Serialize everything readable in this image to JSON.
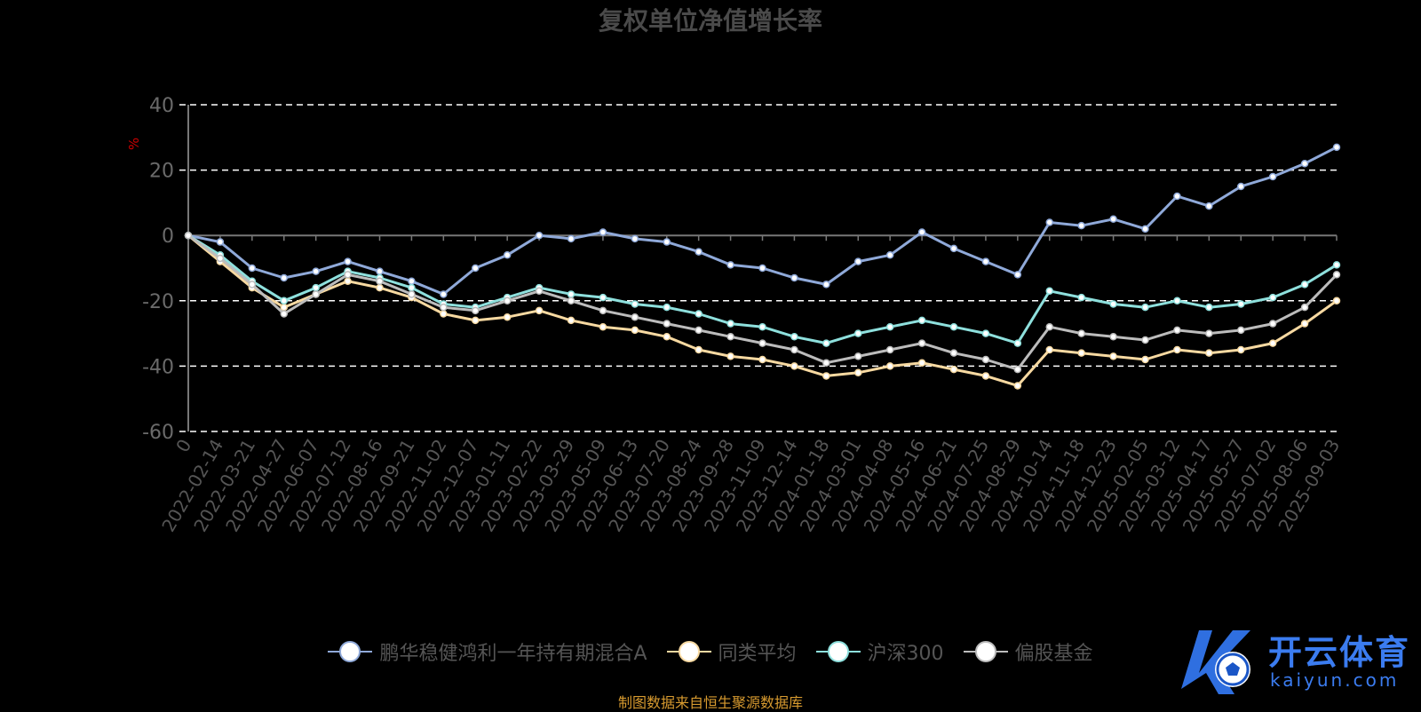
{
  "title": "复权单位净值增长率",
  "source_note": "制图数据来自恒生聚源数据库",
  "watermark": {
    "brand": "开云体育",
    "domain": "kaiyun.com"
  },
  "chart_data": {
    "type": "line",
    "title": "复权单位净值增长率",
    "ylabel": "%",
    "ylim": [
      -60,
      40
    ],
    "yticks": [
      -60,
      -40,
      -20,
      0,
      20,
      40
    ],
    "grid": true,
    "legend_position": "bottom",
    "x": [
      "0",
      "2022-02-14",
      "2022-03-21",
      "2022-04-27",
      "2022-06-07",
      "2022-07-12",
      "2022-08-16",
      "2022-09-21",
      "2022-11-02",
      "2022-12-07",
      "2023-01-11",
      "2023-02-22",
      "2023-03-29",
      "2023-05-09",
      "2023-06-13",
      "2023-07-20",
      "2023-08-24",
      "2023-09-28",
      "2023-11-09",
      "2023-12-14",
      "2024-01-18",
      "2024-03-01",
      "2024-04-08",
      "2024-05-16",
      "2024-06-21",
      "2024-07-25",
      "2024-08-29",
      "2024-10-14",
      "2024-11-18",
      "2024-12-23",
      "2025-02-05",
      "2025-03-12",
      "2025-04-17",
      "2025-05-27",
      "2025-07-02",
      "2025-08-06",
      "2025-09-03"
    ],
    "series": [
      {
        "name": "鹏华稳健鸿利一年持有期混合A",
        "color": "#8fa9d9",
        "values": [
          0,
          -2,
          -10,
          -13,
          -11,
          -8,
          -11,
          -14,
          -18,
          -10,
          -6,
          0,
          -1,
          1,
          -1,
          -2,
          -5,
          -9,
          -10,
          -13,
          -15,
          -8,
          -6,
          1,
          -4,
          -8,
          -12,
          4,
          3,
          5,
          2,
          12,
          9,
          15,
          18,
          22,
          27
        ]
      },
      {
        "name": "同类平均",
        "color": "#f7d9a1",
        "values": [
          0,
          -8,
          -16,
          -22,
          -18,
          -14,
          -16,
          -19,
          -24,
          -26,
          -25,
          -23,
          -26,
          -28,
          -29,
          -31,
          -35,
          -37,
          -38,
          -40,
          -43,
          -42,
          -40,
          -39,
          -41,
          -43,
          -46,
          -35,
          -36,
          -37,
          -38,
          -35,
          -36,
          -35,
          -33,
          -27,
          -20
        ]
      },
      {
        "name": "沪深300",
        "color": "#8ee0dd",
        "values": [
          0,
          -6,
          -14,
          -20,
          -16,
          -11,
          -13,
          -16,
          -21,
          -22,
          -19,
          -16,
          -18,
          -19,
          -21,
          -22,
          -24,
          -27,
          -28,
          -31,
          -33,
          -30,
          -28,
          -26,
          -28,
          -30,
          -33,
          -17,
          -19,
          -21,
          -22,
          -20,
          -22,
          -21,
          -19,
          -15,
          -9
        ]
      },
      {
        "name": "偏股基金",
        "color": "#bcbcbc",
        "values": [
          0,
          -7,
          -15,
          -24,
          -18,
          -12,
          -14,
          -18,
          -22,
          -23,
          -20,
          -17,
          -20,
          -23,
          -25,
          -27,
          -29,
          -31,
          -33,
          -35,
          -39,
          -37,
          -35,
          -33,
          -36,
          -38,
          -41,
          -28,
          -30,
          -31,
          -32,
          -29,
          -30,
          -29,
          -27,
          -22,
          -12
        ]
      }
    ]
  }
}
